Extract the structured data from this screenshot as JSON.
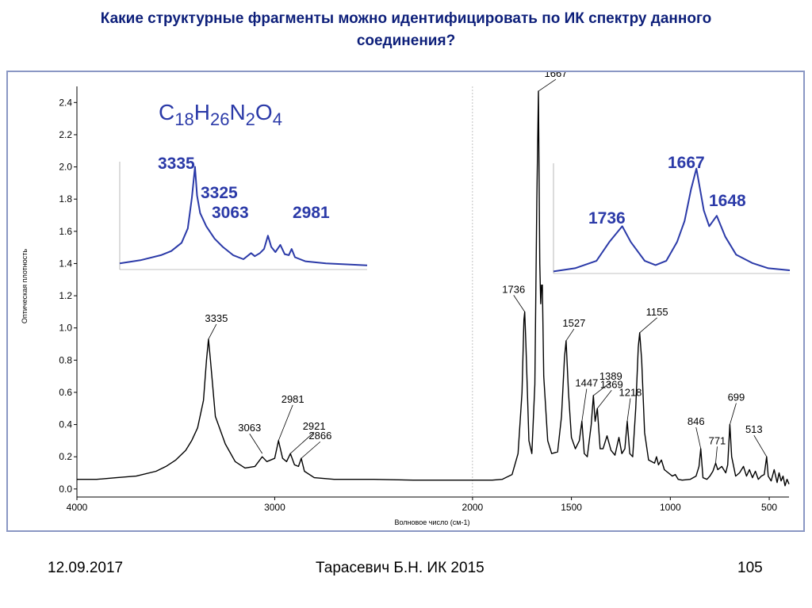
{
  "slide": {
    "title_line1": "Какие структурные фрагменты можно идентифицировать по ИК спектру данного",
    "title_line2": "соединения?"
  },
  "footer": {
    "date": "12.09.2017",
    "author": "Тарасевич Б.Н.  ИК 2015",
    "page": "105"
  },
  "formula": {
    "parts": [
      {
        "text": "C",
        "sub": false
      },
      {
        "text": "18",
        "sub": true
      },
      {
        "text": "H",
        "sub": false
      },
      {
        "text": "26",
        "sub": true
      },
      {
        "text": "N",
        "sub": false
      },
      {
        "text": "2",
        "sub": true
      },
      {
        "text": "O",
        "sub": false
      },
      {
        "text": "4",
        "sub": true
      }
    ]
  },
  "colors": {
    "spectrum": "#000000",
    "inset_line": "#2b3aa8",
    "inset_label": "#2b3aa8",
    "frame": "#8a97c4",
    "title": "#0d1f7a"
  },
  "chart_data": [
    {
      "type": "line",
      "xlabel": "Волновое число (см-1)",
      "ylabel": "Оптическая плотность",
      "xlim": [
        4000,
        400
      ],
      "ylim": [
        -0.05,
        2.5
      ],
      "x_reversed": true,
      "xticks": [
        4000,
        3000,
        2000,
        1500,
        1000,
        500
      ],
      "yticks": [
        0.0,
        0.2,
        0.4,
        0.6,
        0.8,
        1.0,
        1.2,
        1.4,
        1.6,
        1.8,
        2.0,
        2.2,
        2.4
      ],
      "peaks": [
        {
          "x": 3335,
          "y": 0.93,
          "label": "3335"
        },
        {
          "x": 3063,
          "y": 0.22,
          "label": "3063"
        },
        {
          "x": 2981,
          "y": 0.3,
          "label": "2981"
        },
        {
          "x": 2921,
          "y": 0.22,
          "label": "2921"
        },
        {
          "x": 2866,
          "y": 0.19,
          "label": "2866"
        },
        {
          "x": 1736,
          "y": 1.1,
          "label": "1736"
        },
        {
          "x": 1667,
          "y": 2.47,
          "label": "1667"
        },
        {
          "x": 1648,
          "y": 1.35,
          "label": "1648"
        },
        {
          "x": 1527,
          "y": 0.92,
          "label": "1527"
        },
        {
          "x": 1447,
          "y": 0.42,
          "label": "1447"
        },
        {
          "x": 1389,
          "y": 0.58,
          "label": "1389"
        },
        {
          "x": 1369,
          "y": 0.5,
          "label": "1369"
        },
        {
          "x": 1218,
          "y": 0.42,
          "label": "1218"
        },
        {
          "x": 1155,
          "y": 0.97,
          "label": "1155"
        },
        {
          "x": 846,
          "y": 0.25,
          "label": "846"
        },
        {
          "x": 771,
          "y": 0.16,
          "label": "771"
        },
        {
          "x": 699,
          "y": 0.4,
          "label": "699"
        },
        {
          "x": 513,
          "y": 0.2,
          "label": "513"
        }
      ],
      "spectrum": [
        [
          4000,
          0.06
        ],
        [
          3900,
          0.06
        ],
        [
          3800,
          0.07
        ],
        [
          3700,
          0.08
        ],
        [
          3600,
          0.11
        ],
        [
          3550,
          0.14
        ],
        [
          3500,
          0.18
        ],
        [
          3450,
          0.24
        ],
        [
          3420,
          0.3
        ],
        [
          3390,
          0.38
        ],
        [
          3360,
          0.55
        ],
        [
          3345,
          0.8
        ],
        [
          3335,
          0.93
        ],
        [
          3325,
          0.8
        ],
        [
          3300,
          0.45
        ],
        [
          3250,
          0.28
        ],
        [
          3200,
          0.17
        ],
        [
          3150,
          0.13
        ],
        [
          3100,
          0.14
        ],
        [
          3063,
          0.2
        ],
        [
          3040,
          0.17
        ],
        [
          3000,
          0.19
        ],
        [
          2981,
          0.3
        ],
        [
          2960,
          0.19
        ],
        [
          2940,
          0.17
        ],
        [
          2921,
          0.22
        ],
        [
          2900,
          0.15
        ],
        [
          2880,
          0.14
        ],
        [
          2866,
          0.19
        ],
        [
          2850,
          0.11
        ],
        [
          2800,
          0.07
        ],
        [
          2700,
          0.06
        ],
        [
          2500,
          0.06
        ],
        [
          2300,
          0.055
        ],
        [
          2100,
          0.055
        ],
        [
          2000,
          0.055
        ],
        [
          1900,
          0.055
        ],
        [
          1850,
          0.06
        ],
        [
          1800,
          0.09
        ],
        [
          1770,
          0.22
        ],
        [
          1750,
          0.6
        ],
        [
          1740,
          1.05
        ],
        [
          1736,
          1.1
        ],
        [
          1730,
          0.9
        ],
        [
          1715,
          0.3
        ],
        [
          1700,
          0.22
        ],
        [
          1685,
          0.65
        ],
        [
          1675,
          1.8
        ],
        [
          1667,
          2.47
        ],
        [
          1660,
          1.4
        ],
        [
          1655,
          1.15
        ],
        [
          1648,
          1.35
        ],
        [
          1640,
          0.7
        ],
        [
          1620,
          0.3
        ],
        [
          1600,
          0.22
        ],
        [
          1570,
          0.23
        ],
        [
          1550,
          0.45
        ],
        [
          1535,
          0.82
        ],
        [
          1527,
          0.92
        ],
        [
          1515,
          0.6
        ],
        [
          1500,
          0.32
        ],
        [
          1480,
          0.25
        ],
        [
          1460,
          0.3
        ],
        [
          1447,
          0.42
        ],
        [
          1435,
          0.22
        ],
        [
          1420,
          0.2
        ],
        [
          1400,
          0.4
        ],
        [
          1389,
          0.58
        ],
        [
          1380,
          0.42
        ],
        [
          1369,
          0.5
        ],
        [
          1355,
          0.25
        ],
        [
          1340,
          0.25
        ],
        [
          1320,
          0.33
        ],
        [
          1300,
          0.24
        ],
        [
          1280,
          0.21
        ],
        [
          1260,
          0.32
        ],
        [
          1245,
          0.22
        ],
        [
          1230,
          0.25
        ],
        [
          1218,
          0.42
        ],
        [
          1205,
          0.22
        ],
        [
          1190,
          0.2
        ],
        [
          1175,
          0.5
        ],
        [
          1162,
          0.88
        ],
        [
          1155,
          0.97
        ],
        [
          1145,
          0.8
        ],
        [
          1130,
          0.35
        ],
        [
          1110,
          0.18
        ],
        [
          1080,
          0.16
        ],
        [
          1070,
          0.2
        ],
        [
          1060,
          0.15
        ],
        [
          1045,
          0.18
        ],
        [
          1030,
          0.12
        ],
        [
          1010,
          0.1
        ],
        [
          990,
          0.08
        ],
        [
          975,
          0.09
        ],
        [
          960,
          0.06
        ],
        [
          940,
          0.055
        ],
        [
          900,
          0.06
        ],
        [
          870,
          0.08
        ],
        [
          855,
          0.14
        ],
        [
          846,
          0.25
        ],
        [
          835,
          0.07
        ],
        [
          815,
          0.06
        ],
        [
          800,
          0.08
        ],
        [
          785,
          0.11
        ],
        [
          771,
          0.16
        ],
        [
          760,
          0.12
        ],
        [
          740,
          0.14
        ],
        [
          720,
          0.1
        ],
        [
          710,
          0.15
        ],
        [
          699,
          0.4
        ],
        [
          690,
          0.2
        ],
        [
          670,
          0.08
        ],
        [
          650,
          0.1
        ],
        [
          630,
          0.14
        ],
        [
          615,
          0.08
        ],
        [
          600,
          0.12
        ],
        [
          585,
          0.07
        ],
        [
          570,
          0.11
        ],
        [
          555,
          0.06
        ],
        [
          540,
          0.08
        ],
        [
          525,
          0.09
        ],
        [
          513,
          0.2
        ],
        [
          505,
          0.08
        ],
        [
          490,
          0.05
        ],
        [
          475,
          0.12
        ],
        [
          460,
          0.04
        ],
        [
          450,
          0.1
        ],
        [
          440,
          0.05
        ],
        [
          430,
          0.08
        ],
        [
          420,
          0.02
        ],
        [
          410,
          0.06
        ],
        [
          400,
          0.03
        ]
      ]
    },
    {
      "type": "line",
      "title": "",
      "inset": "left",
      "labels": [
        {
          "text": "3335",
          "x": 3335,
          "y": 1.0
        },
        {
          "text": "3325",
          "x": 3325,
          "y": 0.62
        },
        {
          "text": "3063",
          "x": 3063,
          "y": 0.26
        },
        {
          "text": "2981",
          "x": 2981,
          "y": 0.4
        }
      ],
      "xlim": [
        3700,
        2500
      ],
      "ylim": [
        0,
        1.05
      ],
      "spectrum": [
        [
          3700,
          0.06
        ],
        [
          3600,
          0.09
        ],
        [
          3500,
          0.14
        ],
        [
          3450,
          0.18
        ],
        [
          3400,
          0.26
        ],
        [
          3370,
          0.4
        ],
        [
          3350,
          0.7
        ],
        [
          3335,
          1.0
        ],
        [
          3325,
          0.72
        ],
        [
          3310,
          0.55
        ],
        [
          3280,
          0.42
        ],
        [
          3240,
          0.3
        ],
        [
          3200,
          0.22
        ],
        [
          3150,
          0.14
        ],
        [
          3100,
          0.1
        ],
        [
          3063,
          0.16
        ],
        [
          3045,
          0.13
        ],
        [
          3020,
          0.16
        ],
        [
          3000,
          0.2
        ],
        [
          2981,
          0.33
        ],
        [
          2965,
          0.22
        ],
        [
          2945,
          0.17
        ],
        [
          2921,
          0.24
        ],
        [
          2900,
          0.15
        ],
        [
          2880,
          0.14
        ],
        [
          2866,
          0.2
        ],
        [
          2850,
          0.12
        ],
        [
          2800,
          0.08
        ],
        [
          2700,
          0.06
        ],
        [
          2600,
          0.05
        ],
        [
          2500,
          0.04
        ]
      ]
    },
    {
      "type": "line",
      "title": "",
      "inset": "right",
      "labels": [
        {
          "text": "1736",
          "x": 1736,
          "y": 0.45
        },
        {
          "text": "1667",
          "x": 1667,
          "y": 1.0
        },
        {
          "text": "1648",
          "x": 1648,
          "y": 0.55
        }
      ],
      "xlim": [
        1800,
        1580
      ],
      "ylim": [
        0,
        1.05
      ],
      "spectrum": [
        [
          1800,
          0.02
        ],
        [
          1780,
          0.05
        ],
        [
          1760,
          0.12
        ],
        [
          1748,
          0.3
        ],
        [
          1736,
          0.45
        ],
        [
          1728,
          0.3
        ],
        [
          1715,
          0.12
        ],
        [
          1705,
          0.08
        ],
        [
          1695,
          0.12
        ],
        [
          1685,
          0.3
        ],
        [
          1678,
          0.5
        ],
        [
          1672,
          0.8
        ],
        [
          1667,
          1.0
        ],
        [
          1660,
          0.6
        ],
        [
          1655,
          0.45
        ],
        [
          1648,
          0.55
        ],
        [
          1640,
          0.35
        ],
        [
          1630,
          0.18
        ],
        [
          1615,
          0.1
        ],
        [
          1600,
          0.05
        ],
        [
          1580,
          0.03
        ]
      ]
    }
  ]
}
